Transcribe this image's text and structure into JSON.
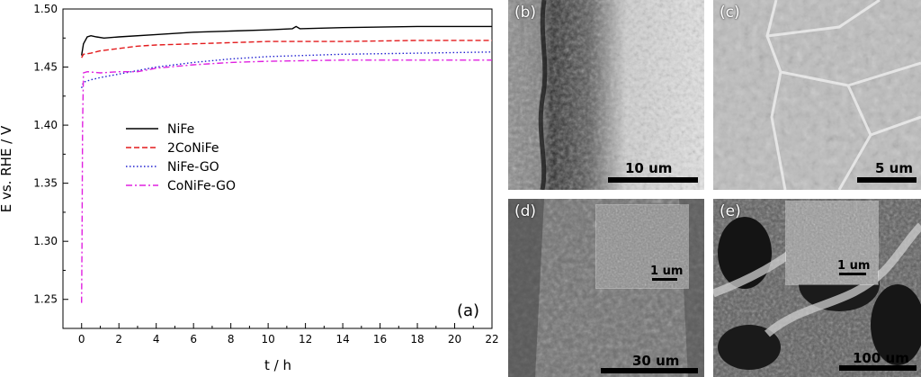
{
  "chart_data": {
    "type": "line",
    "xlabel": "t / h",
    "ylabel": "E vs. RHE / V",
    "xlim": [
      -1,
      22
    ],
    "ylim": [
      1.225,
      1.5
    ],
    "xticks": [
      0,
      2,
      4,
      6,
      8,
      10,
      12,
      14,
      16,
      18,
      20,
      22
    ],
    "yticks": [
      1.25,
      1.3,
      1.35,
      1.4,
      1.45,
      1.5
    ],
    "ytick_labels": [
      "1.25",
      "1.30",
      "1.35",
      "1.40",
      "1.45",
      "1.50"
    ],
    "panel_label": "(a)",
    "legend_position": "middle-left",
    "series": [
      {
        "name": "NiFe",
        "color": "#000000",
        "dash": "solid",
        "x": [
          0,
          0.1,
          0.3,
          0.5,
          0.8,
          1.2,
          2,
          4,
          6,
          8,
          10,
          11.3,
          11.5,
          11.7,
          14,
          18,
          22
        ],
        "y": [
          1.46,
          1.47,
          1.476,
          1.477,
          1.476,
          1.475,
          1.476,
          1.478,
          1.48,
          1.481,
          1.482,
          1.483,
          1.485,
          1.483,
          1.484,
          1.485,
          1.485
        ]
      },
      {
        "name": "2CoNiFe",
        "color": "#e31a1c",
        "dash": "dashed",
        "x": [
          0,
          0.1,
          0.5,
          1,
          2,
          3,
          4,
          6,
          8,
          10,
          14,
          18,
          22
        ],
        "y": [
          1.458,
          1.461,
          1.462,
          1.464,
          1.466,
          1.468,
          1.469,
          1.47,
          1.471,
          1.472,
          1.472,
          1.473,
          1.473
        ]
      },
      {
        "name": "NiFe-GO",
        "color": "#1f1fd0",
        "dash": "dotted",
        "x": [
          0,
          0.1,
          0.5,
          1,
          2,
          3,
          4,
          6,
          8,
          10,
          14,
          18,
          22
        ],
        "y": [
          1.432,
          1.437,
          1.439,
          1.441,
          1.444,
          1.447,
          1.45,
          1.454,
          1.457,
          1.459,
          1.461,
          1.462,
          1.463
        ]
      },
      {
        "name": "CoNiFe-GO",
        "color": "#e020e0",
        "dash": "dashdot",
        "x": [
          0,
          0.02,
          0.05,
          0.1,
          0.3,
          1,
          2,
          3,
          4,
          6,
          8,
          10,
          14,
          18,
          22
        ],
        "y": [
          1.247,
          1.3,
          1.4,
          1.445,
          1.446,
          1.445,
          1.446,
          1.446,
          1.449,
          1.452,
          1.454,
          1.455,
          1.456,
          1.456,
          1.456
        ]
      }
    ]
  },
  "panels": {
    "b": {
      "label": "(b)",
      "scalebar": "10 um"
    },
    "c": {
      "label": "(c)",
      "scalebar": "5 um"
    },
    "d": {
      "label": "(d)",
      "scalebar": "30 um",
      "inset_scalebar": "1 um"
    },
    "e": {
      "label": "(e)",
      "scalebar": "100 um",
      "inset_scalebar": "1 um"
    }
  }
}
